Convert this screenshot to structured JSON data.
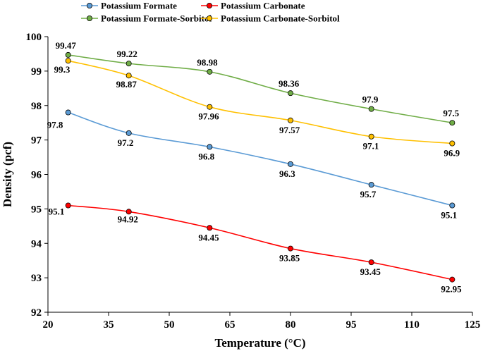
{
  "chart_data": {
    "type": "line",
    "xlabel": "Temperature (°C)",
    "ylabel": "Density (pcf)",
    "xlim": [
      20,
      125
    ],
    "ylim": [
      92,
      100
    ],
    "xticks": [
      "20",
      "35",
      "50",
      "65",
      "80",
      "95",
      "110",
      "125"
    ],
    "yticks": [
      "92",
      "93",
      "94",
      "95",
      "96",
      "97",
      "98",
      "99",
      "100"
    ],
    "grid": false,
    "legend_placement": "top",
    "x": [
      25,
      40,
      60,
      80,
      100,
      120
    ],
    "series": [
      {
        "name": "Potassium Formate",
        "color": "#5B9BD5",
        "values": [
          97.8,
          97.2,
          96.8,
          96.3,
          95.7,
          95.1
        ],
        "labels": [
          "97.8",
          "97.2",
          "96.8",
          "96.3",
          "95.7",
          "95.1"
        ]
      },
      {
        "name": "Potassium Carbonate",
        "color": "#FF0000",
        "values": [
          95.1,
          94.92,
          94.45,
          93.85,
          93.45,
          92.95
        ],
        "labels": [
          "95.1",
          "94.92",
          "94.45",
          "93.85",
          "93.45",
          "92.95"
        ]
      },
      {
        "name": "Potassium Formate-Sorbitol",
        "color": "#70AD47",
        "values": [
          99.47,
          99.22,
          98.98,
          98.36,
          97.9,
          97.5
        ],
        "labels": [
          "99.47",
          "99.22",
          "98.98",
          "98.36",
          "97.9",
          "97.5"
        ]
      },
      {
        "name": "Potassium Carbonate-Sorbitol",
        "color": "#FFC000",
        "values": [
          99.3,
          98.87,
          97.96,
          97.57,
          97.1,
          96.9
        ],
        "labels": [
          "99.3",
          "98.87",
          "97.96",
          "97.57",
          "97.1",
          "96.9"
        ]
      }
    ]
  }
}
